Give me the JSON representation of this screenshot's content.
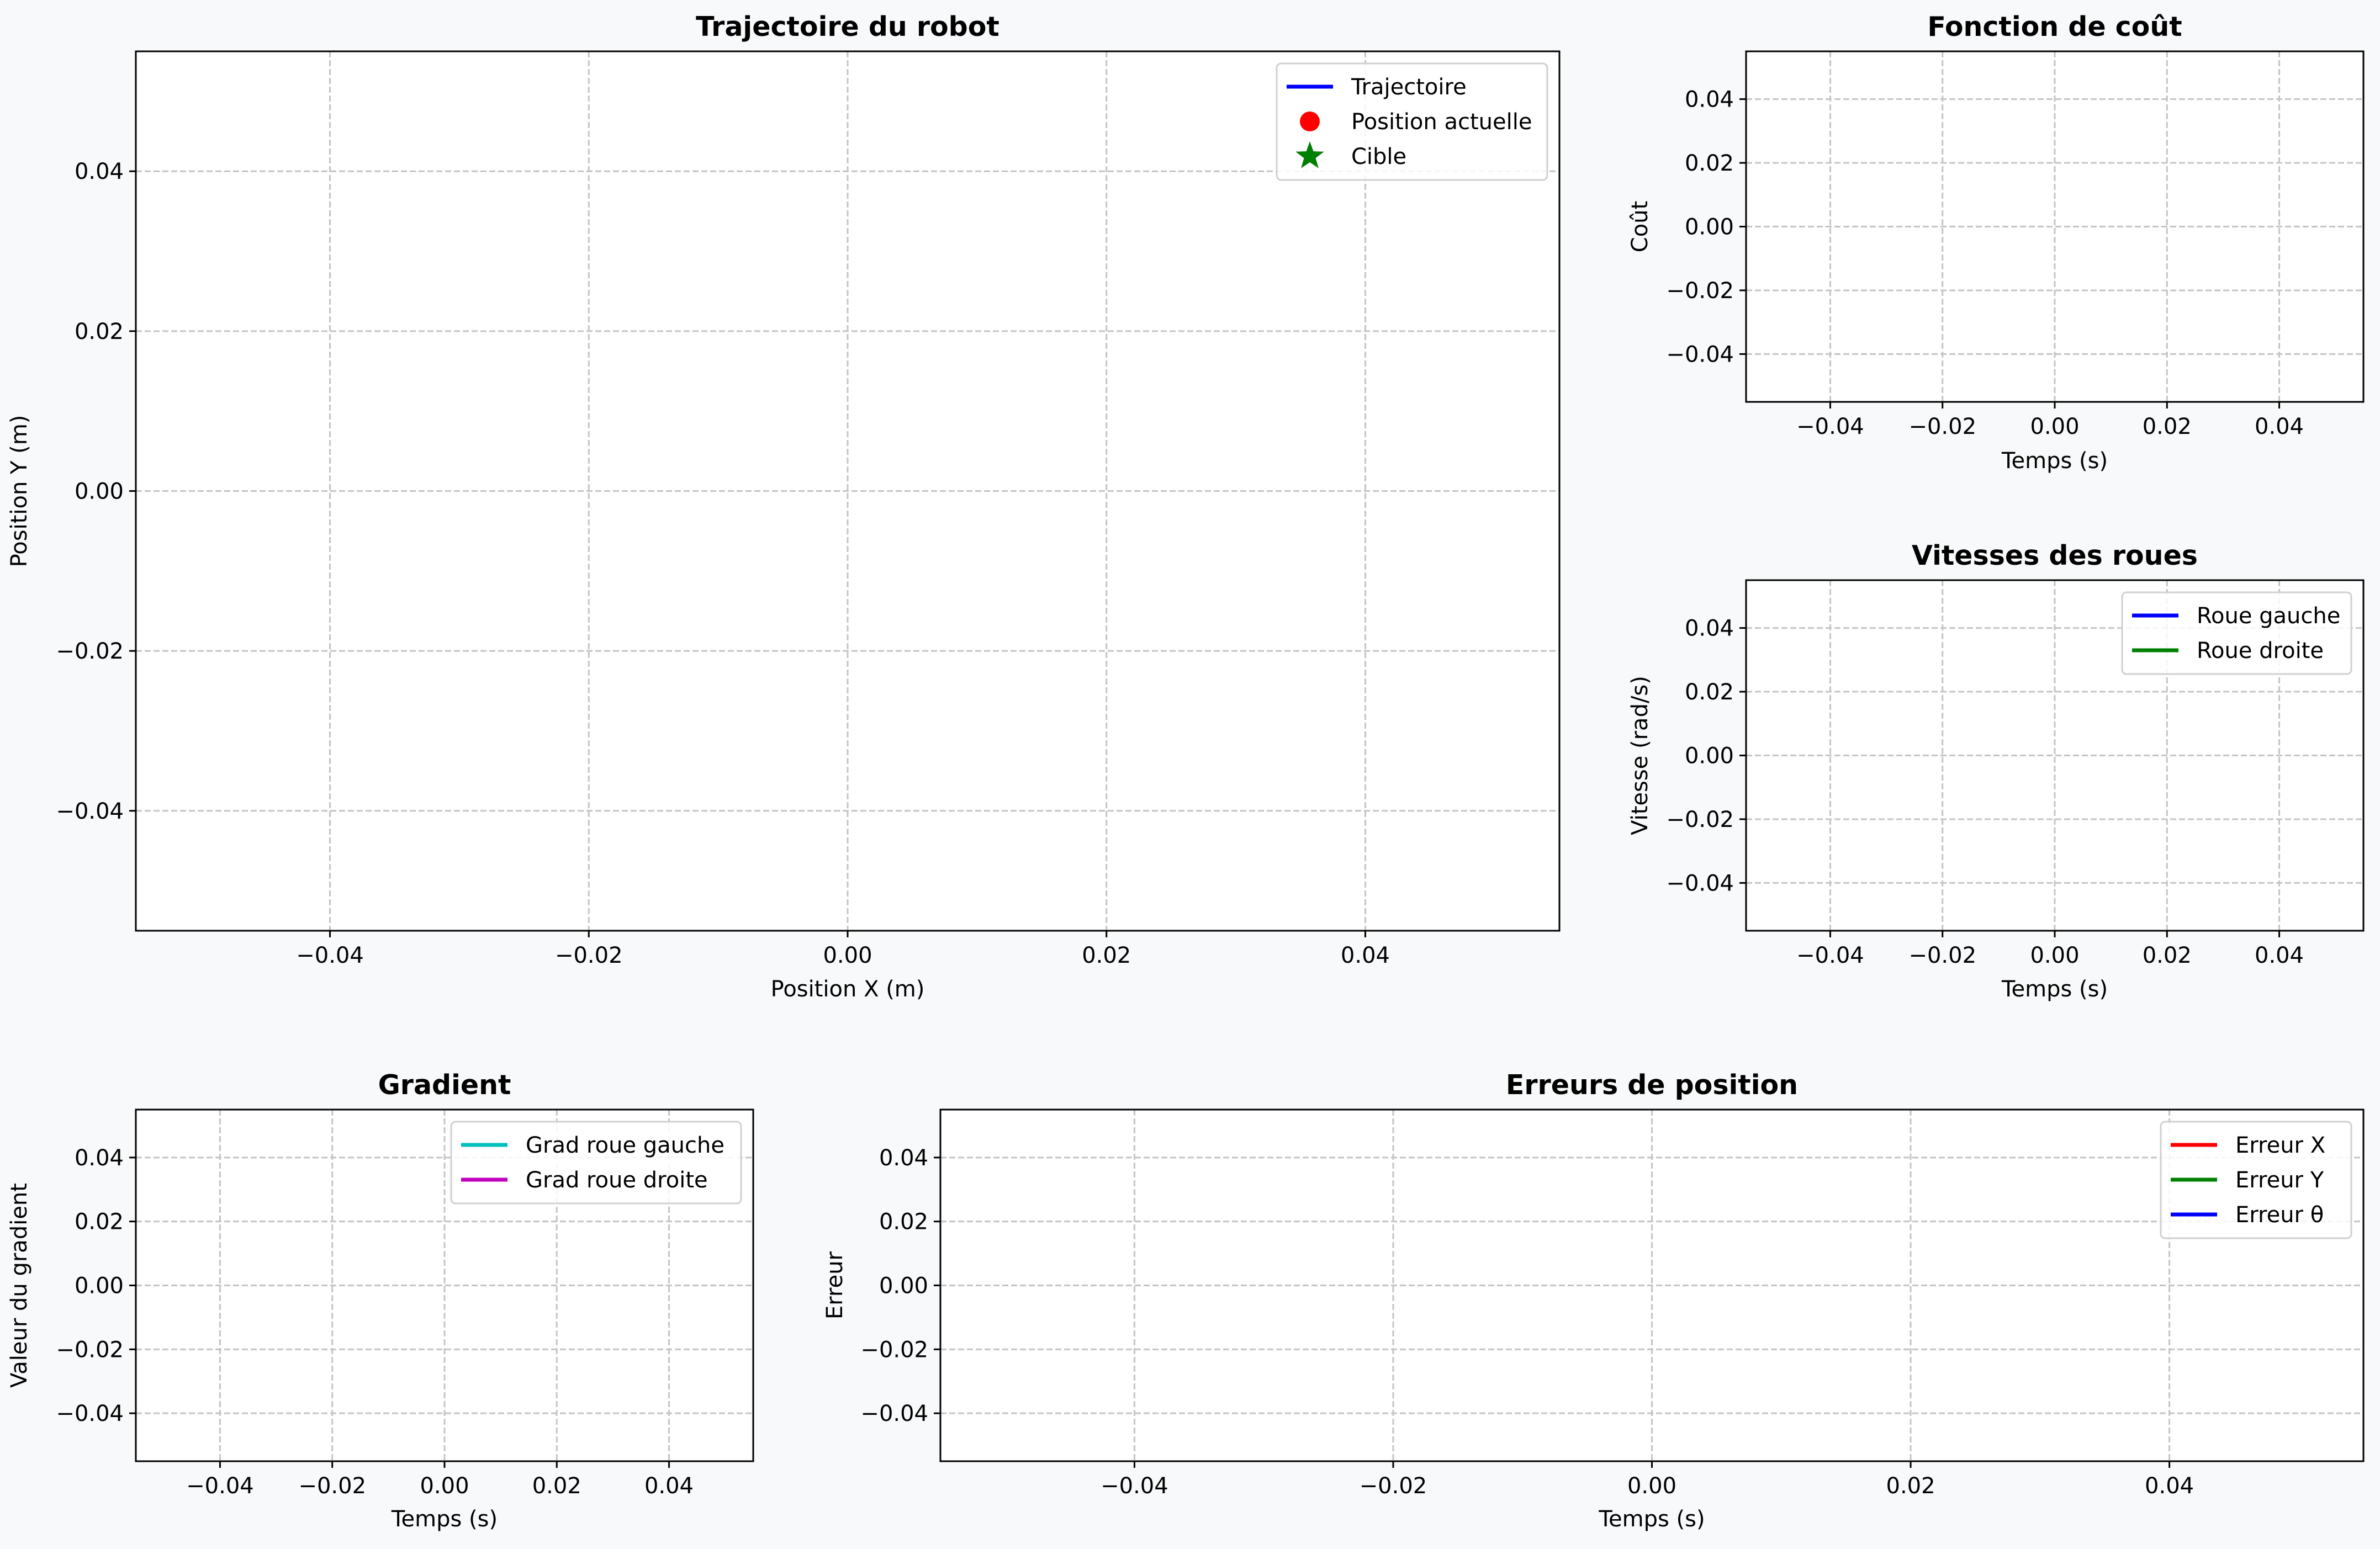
{
  "figure": {
    "background": "#f8f9fa"
  },
  "chart_data": [
    {
      "type": "line",
      "title": "Trajectoire du robot",
      "xlabel": "Position X (m)",
      "ylabel": "Position Y (m)",
      "xlim": [
        -0.055,
        0.055
      ],
      "ylim": [
        -0.055,
        0.055
      ],
      "xticks": [
        -0.04,
        -0.02,
        0.0,
        0.02,
        0.04
      ],
      "yticks": [
        -0.04,
        -0.02,
        0.0,
        0.02,
        0.04
      ],
      "xticklabels": [
        "−0.04",
        "−0.02",
        "0.00",
        "0.02",
        "0.04"
      ],
      "yticklabels": [
        "−0.04",
        "−0.02",
        "0.00",
        "0.02",
        "0.04"
      ],
      "grid": true,
      "legend_position": "top-right",
      "series": [
        {
          "name": "Trajectoire",
          "marker": "line",
          "color": "#0000ff",
          "x": [],
          "y": []
        },
        {
          "name": "Position actuelle",
          "marker": "circle",
          "color": "#ff0000",
          "x": [],
          "y": []
        },
        {
          "name": "Cible",
          "marker": "star",
          "color": "#008000",
          "x": [],
          "y": []
        }
      ]
    },
    {
      "type": "line",
      "title": "Fonction de coût",
      "xlabel": "Temps (s)",
      "ylabel": "Coût",
      "xlim": [
        -0.055,
        0.055
      ],
      "ylim": [
        -0.055,
        0.055
      ],
      "xticks": [
        -0.04,
        -0.02,
        0.0,
        0.02,
        0.04
      ],
      "yticks": [
        -0.04,
        -0.02,
        0.0,
        0.02,
        0.04
      ],
      "xticklabels": [
        "−0.04",
        "−0.02",
        "0.00",
        "0.02",
        "0.04"
      ],
      "yticklabels": [
        "−0.04",
        "−0.02",
        "0.00",
        "0.02",
        "0.04"
      ],
      "grid": true,
      "legend_position": "none",
      "series": []
    },
    {
      "type": "line",
      "title": "Vitesses des roues",
      "xlabel": "Temps (s)",
      "ylabel": "Vitesse (rad/s)",
      "xlim": [
        -0.055,
        0.055
      ],
      "ylim": [
        -0.055,
        0.055
      ],
      "xticks": [
        -0.04,
        -0.02,
        0.0,
        0.02,
        0.04
      ],
      "yticks": [
        -0.04,
        -0.02,
        0.0,
        0.02,
        0.04
      ],
      "xticklabels": [
        "−0.04",
        "−0.02",
        "0.00",
        "0.02",
        "0.04"
      ],
      "yticklabels": [
        "−0.04",
        "−0.02",
        "0.00",
        "0.02",
        "0.04"
      ],
      "grid": true,
      "legend_position": "top-right",
      "series": [
        {
          "name": "Roue gauche",
          "marker": "line",
          "color": "#0000ff",
          "x": [],
          "y": []
        },
        {
          "name": "Roue droite",
          "marker": "line",
          "color": "#008000",
          "x": [],
          "y": []
        }
      ]
    },
    {
      "type": "line",
      "title": "Gradient",
      "xlabel": "Temps (s)",
      "ylabel": "Valeur du gradient",
      "xlim": [
        -0.055,
        0.055
      ],
      "ylim": [
        -0.055,
        0.055
      ],
      "xticks": [
        -0.04,
        -0.02,
        0.0,
        0.02,
        0.04
      ],
      "yticks": [
        -0.04,
        -0.02,
        0.0,
        0.02,
        0.04
      ],
      "xticklabels": [
        "−0.04",
        "−0.02",
        "0.00",
        "0.02",
        "0.04"
      ],
      "yticklabels": [
        "−0.04",
        "−0.02",
        "0.00",
        "0.02",
        "0.04"
      ],
      "grid": true,
      "legend_position": "top-right",
      "series": [
        {
          "name": "Grad roue gauche",
          "marker": "line",
          "color": "#00bfbf",
          "x": [],
          "y": []
        },
        {
          "name": "Grad roue droite",
          "marker": "line",
          "color": "#bf00bf",
          "x": [],
          "y": []
        }
      ]
    },
    {
      "type": "line",
      "title": "Erreurs de position",
      "xlabel": "Temps (s)",
      "ylabel": "Erreur",
      "xlim": [
        -0.055,
        0.055
      ],
      "ylim": [
        -0.055,
        0.055
      ],
      "xticks": [
        -0.04,
        -0.02,
        0.0,
        0.02,
        0.04
      ],
      "yticks": [
        -0.04,
        -0.02,
        0.0,
        0.02,
        0.04
      ],
      "xticklabels": [
        "−0.04",
        "−0.02",
        "0.00",
        "0.02",
        "0.04"
      ],
      "yticklabels": [
        "−0.04",
        "−0.02",
        "0.00",
        "0.02",
        "0.04"
      ],
      "grid": true,
      "legend_position": "top-right",
      "series": [
        {
          "name": "Erreur X",
          "marker": "line",
          "color": "#ff0000",
          "x": [],
          "y": []
        },
        {
          "name": "Erreur Y",
          "marker": "line",
          "color": "#008000",
          "x": [],
          "y": []
        },
        {
          "name": "Erreur θ",
          "marker": "line",
          "color": "#0000ff",
          "x": [],
          "y": []
        }
      ]
    }
  ]
}
